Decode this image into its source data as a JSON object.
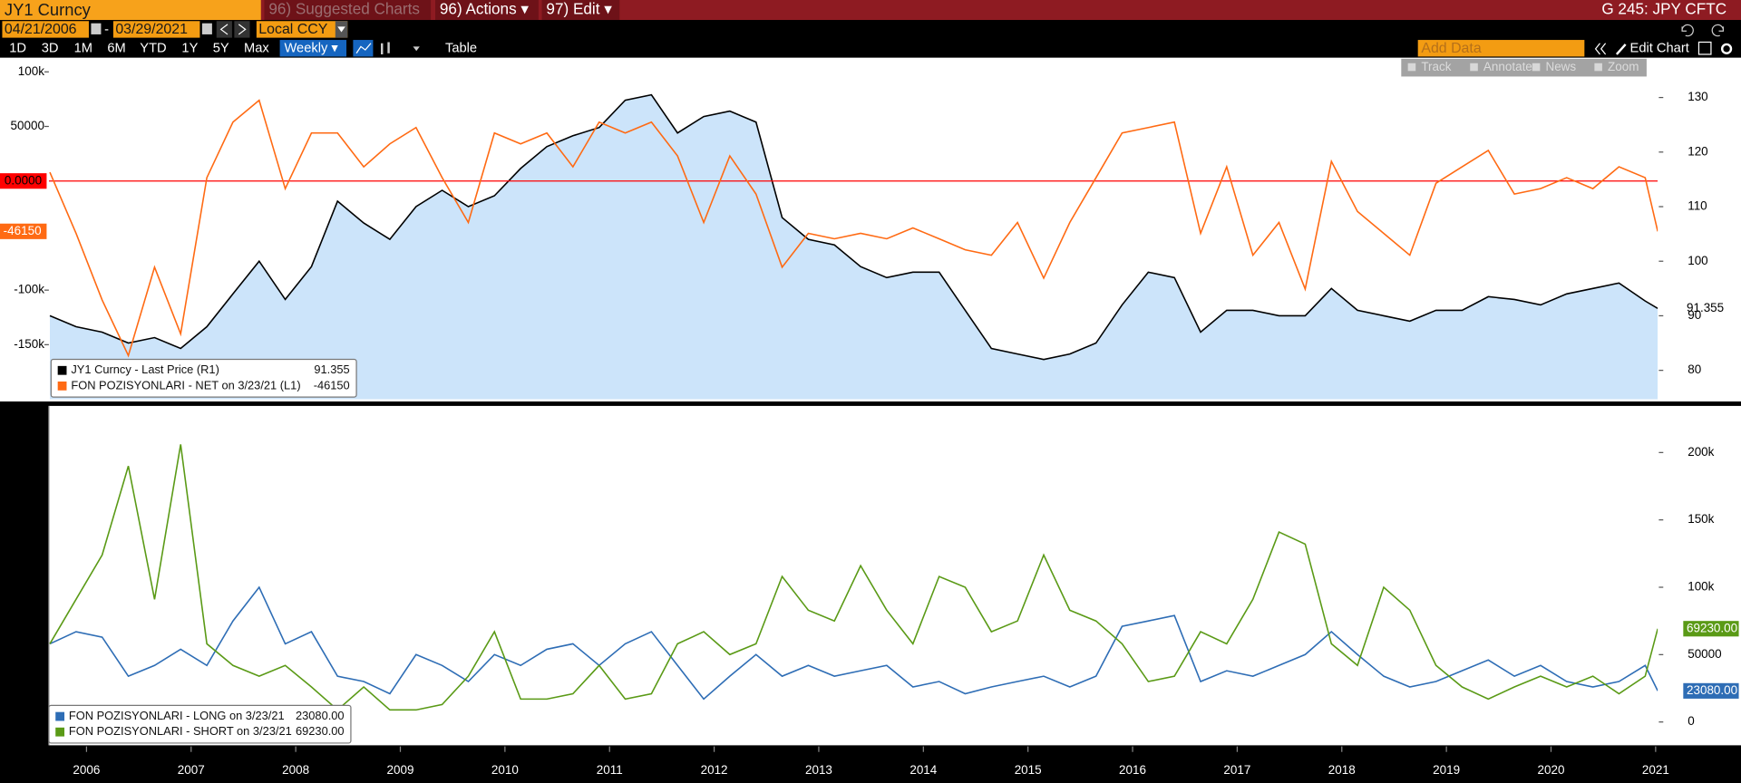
{
  "toolbar": {
    "ticker": "JY1 Curncy",
    "suggested": "96) Suggested Charts",
    "actions": "96) Actions ▾",
    "edit": "97) Edit ▾",
    "page": "G 245: JPY CFTC",
    "start_date": "04/21/2006",
    "end_date": "03/29/2021",
    "currency": "Local CCY",
    "periods": [
      "1D",
      "3D",
      "1M",
      "6M",
      "YTD",
      "1Y",
      "5Y",
      "Max"
    ],
    "frequency": "Weekly ▾",
    "table": "Table",
    "add_data": "Add Data",
    "edit_chart": "Edit Chart",
    "tools": [
      "Track",
      "Annotate",
      "News",
      "Zoom"
    ]
  },
  "chart_data": [
    {
      "type": "line",
      "x": [
        2005.65,
        2005.9,
        2006.15,
        2006.4,
        2006.65,
        2006.9,
        2007.15,
        2007.4,
        2007.65,
        2007.9,
        2008.15,
        2008.4,
        2008.65,
        2008.9,
        2009.15,
        2009.4,
        2009.65,
        2009.9,
        2010.15,
        2010.4,
        2010.65,
        2010.9,
        2011.15,
        2011.4,
        2011.65,
        2011.9,
        2012.15,
        2012.4,
        2012.65,
        2012.9,
        2013.15,
        2013.4,
        2013.65,
        2013.9,
        2014.15,
        2014.4,
        2014.65,
        2014.9,
        2015.15,
        2015.4,
        2015.65,
        2015.9,
        2016.15,
        2016.4,
        2016.65,
        2016.9,
        2017.15,
        2017.4,
        2017.65,
        2017.9,
        2018.15,
        2018.4,
        2018.65,
        2018.9,
        2019.15,
        2019.4,
        2019.65,
        2019.9,
        2020.15,
        2020.4,
        2020.65,
        2020.9,
        2021.02
      ],
      "xlim": [
        2005.64,
        2021.02
      ],
      "ylim": [
        -200000,
        113000
      ],
      "yticks": [
        {
          "value": 100000,
          "label": "100k"
        },
        50000,
        {
          "value": -100000,
          "label": "-100k"
        },
        {
          "value": -150000,
          "label": "-150k"
        }
      ],
      "yaxis_position": "left",
      "y2lim": [
        74.7,
        137.3
      ],
      "y2ticks": [
        130,
        120,
        110,
        100,
        90,
        80
      ],
      "hline": {
        "value": 0,
        "label": "0.0000",
        "color": "#ff0000"
      },
      "series": [
        {
          "name": "JY1 Curncy - Last Price (R1)",
          "color": "#000000",
          "fill_color": "#cce4fa",
          "axis": "y2",
          "values": [
            90,
            88,
            87,
            85,
            86,
            84,
            88,
            94,
            100,
            93,
            99,
            111,
            107,
            104,
            110,
            113,
            110,
            112,
            117,
            121,
            123,
            124.5,
            129.5,
            130.5,
            123.5,
            126.5,
            127.5,
            125.5,
            108,
            104,
            103,
            99,
            97,
            98,
            98,
            91,
            84,
            83,
            82,
            83,
            85,
            92,
            98,
            97,
            87,
            91,
            91,
            90,
            90,
            95,
            91,
            90,
            89,
            91,
            91,
            93.5,
            93,
            92,
            94,
            95,
            96,
            92.7,
            91.355
          ]
        },
        {
          "name": "FON POZISYONLARI - NET on 3/23/21 (L1)",
          "color": "#ff6a13",
          "axis": "y",
          "values": [
            8000,
            -48000,
            -109000,
            -160000,
            -79000,
            -140000,
            3000,
            54000,
            74000,
            -7000,
            44000,
            44000,
            13000,
            34000,
            49000,
            3000,
            -38000,
            44000,
            34000,
            44000,
            13000,
            54000,
            44000,
            54000,
            23000,
            -38000,
            23000,
            -12000,
            -79000,
            -48000,
            -53000,
            -48000,
            -53000,
            -43000,
            -53000,
            -63000,
            -68000,
            -38000,
            -89000,
            -38000,
            3000,
            44000,
            49000,
            54000,
            -48000,
            13000,
            -68000,
            -38000,
            -99000,
            18000,
            -28000,
            -48000,
            -68000,
            -2000,
            13000,
            28000,
            -12000,
            -7000,
            3000,
            -7000,
            13000,
            3000,
            -46150
          ]
        }
      ]
    },
    {
      "type": "line",
      "x": [
        2005.65,
        2005.9,
        2006.15,
        2006.4,
        2006.65,
        2006.9,
        2007.15,
        2007.4,
        2007.65,
        2007.9,
        2008.15,
        2008.4,
        2008.65,
        2008.9,
        2009.15,
        2009.4,
        2009.65,
        2009.9,
        2010.15,
        2010.4,
        2010.65,
        2010.9,
        2011.15,
        2011.4,
        2011.65,
        2011.9,
        2012.15,
        2012.4,
        2012.65,
        2012.9,
        2013.15,
        2013.4,
        2013.65,
        2013.9,
        2014.15,
        2014.4,
        2014.65,
        2014.9,
        2015.15,
        2015.4,
        2015.65,
        2015.9,
        2016.15,
        2016.4,
        2016.65,
        2016.9,
        2017.15,
        2017.4,
        2017.65,
        2017.9,
        2018.15,
        2018.4,
        2018.65,
        2018.9,
        2019.15,
        2019.4,
        2019.65,
        2019.9,
        2020.15,
        2020.4,
        2020.65,
        2020.9,
        2021.02
      ],
      "xlim": [
        2005.64,
        2021.02
      ],
      "xticks": [
        2006,
        2007,
        2008,
        2009,
        2010,
        2011,
        2012,
        2013,
        2014,
        2015,
        2016,
        2017,
        2018,
        2019,
        2020,
        2021
      ],
      "ylim": [
        -17300,
        234600
      ],
      "yticks": [
        {
          "value": 200000,
          "label": "200k"
        },
        {
          "value": 150000,
          "label": "150k"
        },
        {
          "value": 100000,
          "label": "100k"
        },
        50000,
        0
      ],
      "yaxis_position": "right",
      "series": [
        {
          "name": "FON POZISYONLARI - LONG on 3/23/21",
          "color": "#2e6db5",
          "axis": "y",
          "last_label": "23080.00",
          "values": [
            58000,
            67000,
            63000,
            34000,
            42000,
            54000,
            42000,
            75000,
            100000,
            58000,
            67000,
            34000,
            30000,
            21000,
            50000,
            42000,
            30000,
            50000,
            42000,
            54000,
            58000,
            42000,
            58000,
            67000,
            42000,
            17000,
            34000,
            50000,
            34000,
            42000,
            34000,
            38000,
            42000,
            26000,
            30000,
            21000,
            26000,
            30000,
            34000,
            26000,
            34000,
            71000,
            75000,
            79000,
            30000,
            38000,
            34000,
            42000,
            50000,
            67000,
            50000,
            34000,
            26000,
            30000,
            38000,
            46000,
            34000,
            42000,
            30000,
            26000,
            30000,
            42000,
            23080
          ]
        },
        {
          "name": "FON POZISYONLARI - SHORT on 3/23/21",
          "color": "#5a9a16",
          "axis": "y",
          "last_label": "69230.00",
          "values": [
            58000,
            91000,
            124000,
            190000,
            91000,
            206000,
            58000,
            42000,
            34000,
            42000,
            26000,
            9000,
            26000,
            9000,
            9000,
            13000,
            34000,
            67000,
            17000,
            17000,
            21000,
            42000,
            17000,
            21000,
            58000,
            67000,
            50000,
            58000,
            108000,
            83000,
            75000,
            116000,
            83000,
            58000,
            108000,
            100000,
            67000,
            75000,
            124000,
            83000,
            75000,
            58000,
            30000,
            34000,
            67000,
            58000,
            91000,
            141000,
            132000,
            58000,
            42000,
            100000,
            83000,
            42000,
            26000,
            17000,
            26000,
            34000,
            26000,
            34000,
            21000,
            34000,
            69230
          ]
        }
      ]
    }
  ]
}
